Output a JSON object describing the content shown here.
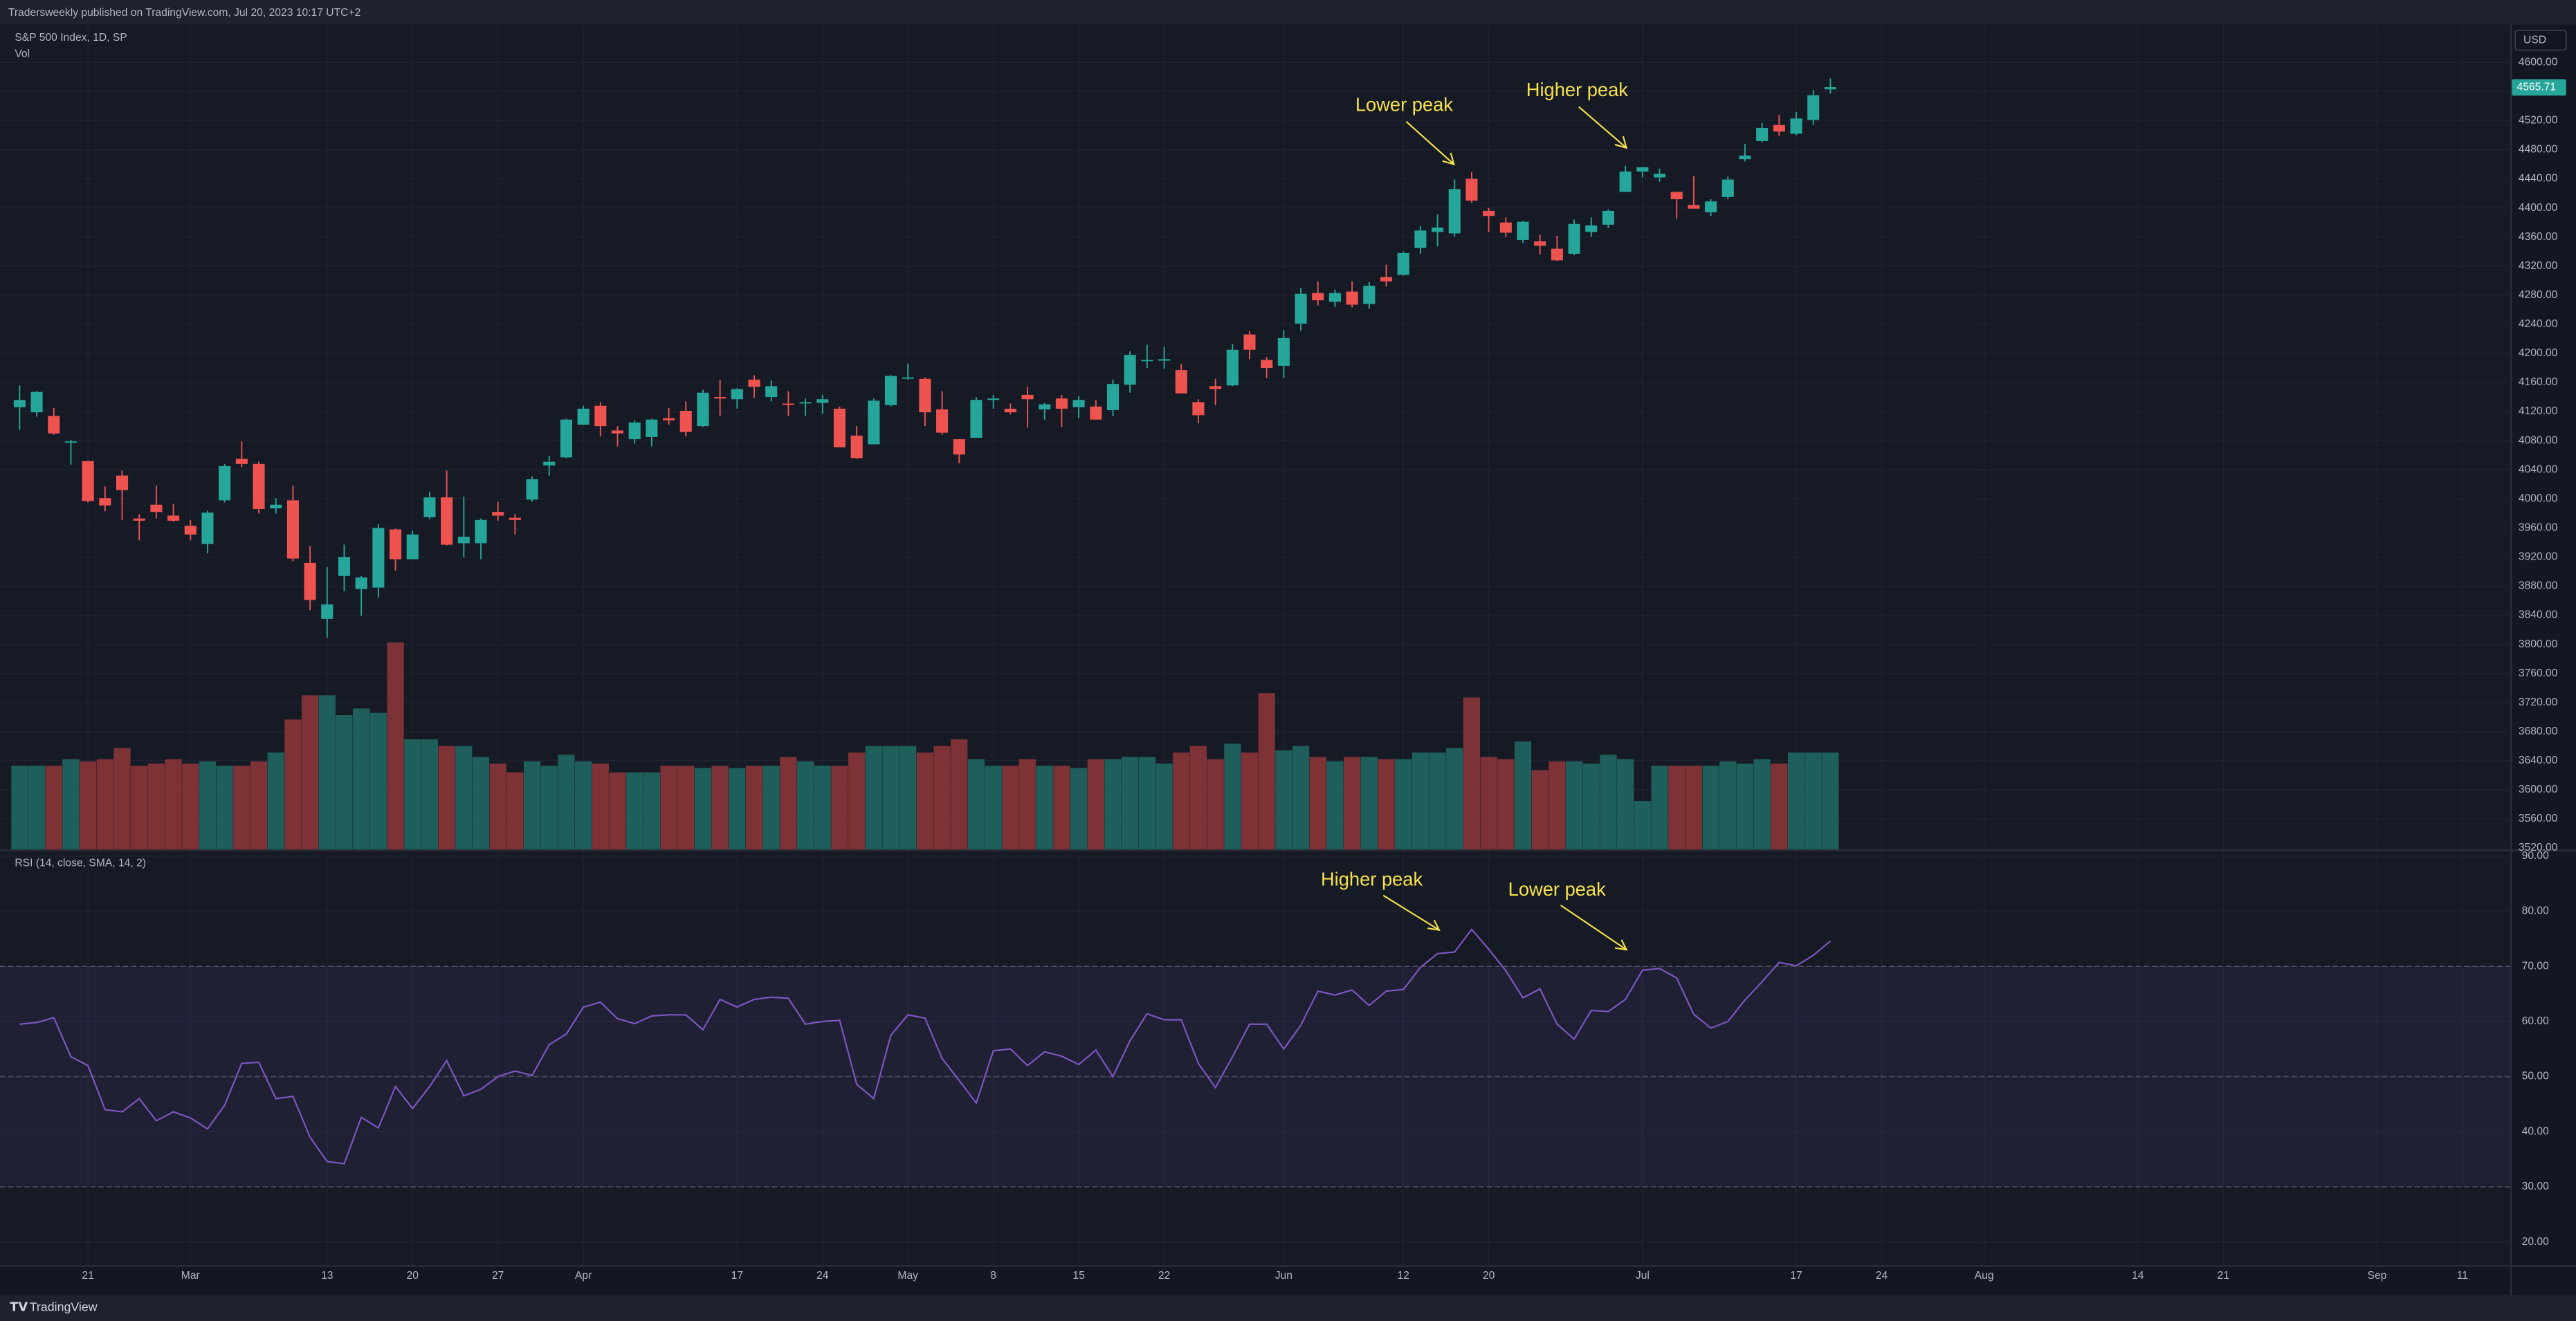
{
  "header": {
    "text": "Tradersweekly published on TradingView.com, Jul 20, 2023 10:17 UTC+2"
  },
  "footer": {
    "text": "TradingView"
  },
  "chart_data": [
    {
      "type": "candlestick",
      "title": "S&P 500 Index, 1D, SP",
      "currency": "USD",
      "up_color": "#26a69a",
      "down_color": "#ef5350",
      "open": [
        4126,
        4119,
        4114,
        4078,
        4052,
        4001,
        4032,
        3973,
        3992,
        3977,
        3963,
        3938,
        3998,
        4055,
        4048,
        3987,
        3998,
        3912,
        3835,
        3894,
        3876,
        3878,
        3958,
        3917,
        3975,
        4002,
        3939,
        3939,
        3982,
        3974,
        3999,
        4046,
        4057,
        4102,
        4128,
        4094,
        4082,
        4085,
        4111,
        4121,
        4100,
        4140,
        4137,
        4164,
        4140,
        4131,
        4132,
        4132,
        4124,
        4087,
        4075,
        4129,
        4166,
        4165,
        4123,
        4082,
        4084,
        4136,
        4124,
        4143,
        4123,
        4138,
        4126,
        4127,
        4122,
        4157,
        4191,
        4190,
        4177,
        4133,
        4155,
        4156,
        4226,
        4191,
        4183,
        4241,
        4283,
        4271,
        4285,
        4268,
        4305,
        4308,
        4345,
        4367,
        4365,
        4440,
        4396,
        4380,
        4356,
        4354,
        4344,
        4337,
        4367,
        4377,
        4422,
        4450,
        4442,
        4422,
        4404,
        4394,
        4415,
        4467,
        4492,
        4514,
        4502,
        4521,
        4563
      ],
      "high": [
        4156,
        4148,
        4125,
        4081,
        4052,
        4017,
        4039,
        3979,
        4018,
        3993,
        3971,
        3984,
        4048,
        4079,
        4051,
        4001,
        4018,
        3935,
        3906,
        3937,
        3894,
        3965,
        3959,
        3956,
        4010,
        4039,
        4003,
        3973,
        3996,
        3979,
        4031,
        4059,
        4110,
        4128,
        4133,
        4100,
        4108,
        4110,
        4125,
        4134,
        4150,
        4164,
        4152,
        4170,
        4163,
        4148,
        4138,
        4143,
        4127,
        4100,
        4138,
        4170,
        4186,
        4167,
        4148,
        4082,
        4140,
        4143,
        4131,
        4154,
        4132,
        4143,
        4141,
        4136,
        4164,
        4203,
        4212,
        4209,
        4186,
        4137,
        4165,
        4213,
        4231,
        4195,
        4232,
        4290,
        4299,
        4288,
        4299,
        4298,
        4322,
        4340,
        4375,
        4391,
        4439,
        4449,
        4400,
        4387,
        4382,
        4363,
        4362,
        4384,
        4387,
        4398,
        4458,
        4456,
        4454,
        4422,
        4444,
        4412,
        4443,
        4488,
        4517,
        4528,
        4532,
        4562,
        4578
      ],
      "low": [
        4095,
        4113,
        4088,
        4047,
        3995,
        3983,
        3971,
        3943,
        3973,
        3968,
        3943,
        3925,
        3995,
        4044,
        3980,
        3980,
        3914,
        3847,
        3809,
        3873,
        3839,
        3864,
        3901,
        3917,
        3972,
        3936,
        3920,
        3917,
        3970,
        3951,
        3996,
        4032,
        4056,
        4102,
        4086,
        4072,
        4076,
        4072,
        4102,
        4086,
        4099,
        4114,
        4124,
        4139,
        4134,
        4114,
        4114,
        4117,
        4071,
        4055,
        4075,
        4127,
        4164,
        4100,
        4088,
        4049,
        4084,
        4124,
        4116,
        4098,
        4109,
        4099,
        4111,
        4109,
        4114,
        4146,
        4180,
        4179,
        4145,
        4104,
        4129,
        4155,
        4192,
        4166,
        4166,
        4231,
        4266,
        4264,
        4263,
        4261,
        4292,
        4307,
        4337,
        4347,
        4361,
        4407,
        4367,
        4360,
        4352,
        4336,
        4327,
        4335,
        4360,
        4372,
        4422,
        4442,
        4436,
        4385,
        4399,
        4389,
        4412,
        4464,
        4490,
        4499,
        4500,
        4514,
        4557
      ],
      "close": [
        4136,
        4147,
        4090,
        4079,
        3997,
        3991,
        4012,
        3970,
        3982,
        3970,
        3951,
        3981,
        4045,
        4048,
        3986,
        3992,
        3918,
        3861,
        3855,
        3920,
        3892,
        3960,
        3917,
        3951,
        4002,
        3937,
        3948,
        3971,
        3977,
        3971,
        4027,
        4051,
        4109,
        4124,
        4100,
        4090,
        4105,
        4109,
        4108,
        4092,
        4146,
        4138,
        4151,
        4154,
        4155,
        4130,
        4133,
        4137,
        4071,
        4056,
        4135,
        4169,
        4167,
        4119,
        4091,
        4061,
        4136,
        4138,
        4119,
        4137,
        4130,
        4124,
        4136,
        4109,
        4158,
        4198,
        4191,
        4192,
        4145,
        4115,
        4151,
        4205,
        4205,
        4180,
        4221,
        4282,
        4273,
        4283,
        4267,
        4293,
        4299,
        4338,
        4369,
        4373,
        4426,
        4410,
        4389,
        4366,
        4381,
        4348,
        4328,
        4378,
        4376,
        4396,
        4450,
        4456,
        4447,
        4412,
        4399,
        4409,
        4439,
        4472,
        4510,
        4505,
        4523,
        4555,
        4566
      ],
      "last_price": {
        "value": 4565.71,
        "label": "4565.71"
      },
      "ylim": [
        3518,
        4652
      ],
      "yticks": [
        {
          "value": 3520,
          "label": "3520.00"
        },
        {
          "value": 3560,
          "label": "3560.00"
        },
        {
          "value": 3600,
          "label": "3600.00"
        },
        {
          "value": 3640,
          "label": "3640.00"
        },
        {
          "value": 3680,
          "label": "3680.00"
        },
        {
          "value": 3720,
          "label": "3720.00"
        },
        {
          "value": 3760,
          "label": "3760.00"
        },
        {
          "value": 3800,
          "label": "3800.00"
        },
        {
          "value": 3840,
          "label": "3840.00"
        },
        {
          "value": 3880,
          "label": "3880.00"
        },
        {
          "value": 3920,
          "label": "3920.00"
        },
        {
          "value": 3960,
          "label": "3960.00"
        },
        {
          "value": 4000,
          "label": "4000.00"
        },
        {
          "value": 4040,
          "label": "4040.00"
        },
        {
          "value": 4080,
          "label": "4080.00"
        },
        {
          "value": 4120,
          "label": "4120.00"
        },
        {
          "value": 4160,
          "label": "4160.00"
        },
        {
          "value": 4200,
          "label": "4200.00"
        },
        {
          "value": 4240,
          "label": "4240.00"
        },
        {
          "value": 4280,
          "label": "4280.00"
        },
        {
          "value": 4320,
          "label": "4320.00"
        },
        {
          "value": 4360,
          "label": "4360.00"
        },
        {
          "value": 4400,
          "label": "4400.00"
        },
        {
          "value": 4440,
          "label": "4440.00"
        },
        {
          "value": 4480,
          "label": "4480.00"
        },
        {
          "value": 4520,
          "label": "4520.00"
        },
        {
          "value": 4560,
          "label": "4560.00"
        },
        {
          "value": 4600,
          "label": "4600.00"
        }
      ],
      "xlim": [
        -1.15,
        145.8
      ],
      "xticks": [
        {
          "value": 4,
          "label": "21"
        },
        {
          "value": 10,
          "label": "Mar"
        },
        {
          "value": 18,
          "label": "13"
        },
        {
          "value": 23,
          "label": "20"
        },
        {
          "value": 28,
          "label": "27"
        },
        {
          "value": 33,
          "label": "Apr"
        },
        {
          "value": 42,
          "label": "17"
        },
        {
          "value": 47,
          "label": "24"
        },
        {
          "value": 52,
          "label": "May"
        },
        {
          "value": 57,
          "label": "8"
        },
        {
          "value": 62,
          "label": "15"
        },
        {
          "value": 67,
          "label": "22"
        },
        {
          "value": 74,
          "label": "Jun"
        },
        {
          "value": 81,
          "label": "12"
        },
        {
          "value": 86,
          "label": "20"
        },
        {
          "value": 95,
          "label": "Jul"
        },
        {
          "value": 104,
          "label": "17"
        },
        {
          "value": 109,
          "label": "24"
        },
        {
          "value": 115,
          "label": "Aug"
        },
        {
          "value": 124,
          "label": "14"
        },
        {
          "value": 129,
          "label": "21"
        },
        {
          "value": 138,
          "label": "Sep"
        },
        {
          "value": 143,
          "label": "11"
        }
      ],
      "annotations": [
        "Lower peak",
        "Higher peak"
      ]
    },
    {
      "type": "bar",
      "title": "Vol",
      "up_color": "#1f5f5b",
      "down_color": "#7d3236",
      "values": [
        3.8,
        3.8,
        3.8,
        4.1,
        4.0,
        4.1,
        4.6,
        3.8,
        3.9,
        4.1,
        3.9,
        4.0,
        3.8,
        3.8,
        4.0,
        4.4,
        5.9,
        7.0,
        7.0,
        6.1,
        6.4,
        6.2,
        9.4,
        5.0,
        5.0,
        4.7,
        4.7,
        4.2,
        3.9,
        3.5,
        4.0,
        3.8,
        4.3,
        4.0,
        3.9,
        3.5,
        3.5,
        3.5,
        3.8,
        3.8,
        3.7,
        3.8,
        3.7,
        3.8,
        3.8,
        4.2,
        4.0,
        3.8,
        3.8,
        4.4,
        4.7,
        4.7,
        4.7,
        4.4,
        4.7,
        5.0,
        4.1,
        3.8,
        3.8,
        4.1,
        3.8,
        3.8,
        3.7,
        4.1,
        4.1,
        4.2,
        4.2,
        3.9,
        4.4,
        4.7,
        4.1,
        4.8,
        4.4,
        7.1,
        4.5,
        4.7,
        4.2,
        4.0,
        4.2,
        4.2,
        4.1,
        4.1,
        4.4,
        4.4,
        4.6,
        6.9,
        4.2,
        4.1,
        4.9,
        3.6,
        4.0,
        4.0,
        3.9,
        4.3,
        4.1,
        2.2,
        3.8,
        3.8,
        3.8,
        3.8,
        4.0,
        3.9,
        4.1,
        3.9,
        4.4,
        4.4,
        4.4
      ],
      "ylim": [
        0,
        9.4
      ]
    },
    {
      "type": "line",
      "title": "RSI (14, close, SMA, 14, 2)",
      "color": "#7e57c2",
      "band_color": "rgba(126,87,194,0.10)",
      "bands": [
        70,
        50,
        30
      ],
      "values": [
        59.5,
        59.8,
        60.7,
        53.6,
        52,
        44,
        43.6,
        46,
        42,
        43.6,
        42.5,
        40.5,
        44.8,
        52.4,
        52.6,
        46,
        46.4,
        39,
        34.6,
        34.2,
        42.6,
        40.7,
        48.2,
        44.2,
        48.2,
        52.9,
        46.5,
        47.7,
        50,
        51,
        50.2,
        55.8,
        57.7,
        62.6,
        63.5,
        60.5,
        59.6,
        61,
        61.2,
        61.2,
        58.5,
        64,
        62.6,
        64,
        64.4,
        64.2,
        59.5,
        60,
        60.2,
        48.6,
        46,
        57.5,
        61.2,
        60.6,
        53.3,
        49.3,
        45.2,
        54.7,
        55,
        52,
        54.5,
        53.7,
        52.2,
        54.8,
        50,
        56.5,
        61.4,
        60.3,
        60.3,
        52.4,
        48,
        53.6,
        59.5,
        59.5,
        55,
        59.3,
        65.5,
        64.8,
        65.7,
        62.9,
        65.5,
        65.8,
        69.8,
        72.3,
        72.6,
        76.7,
        73.1,
        69.2,
        64.3,
        65.9,
        59.5,
        56.8,
        62,
        61.8,
        64,
        69.3,
        69.6,
        67.9,
        61.3,
        58.8,
        60,
        63.9,
        67.2,
        70.7,
        70.1,
        72,
        74.6
      ],
      "ylim": [
        15.8,
        90.9
      ],
      "yticks": [
        {
          "value": 20,
          "label": "20.00"
        },
        {
          "value": 30,
          "label": "30.00"
        },
        {
          "value": 40,
          "label": "40.00"
        },
        {
          "value": 50,
          "label": "50.00"
        },
        {
          "value": 60,
          "label": "60.00"
        },
        {
          "value": 70,
          "label": "70.00"
        },
        {
          "value": 80,
          "label": "80.00"
        },
        {
          "value": 90,
          "label": "90.00"
        }
      ],
      "annotations": [
        "Higher peak",
        "Lower peak"
      ]
    }
  ]
}
